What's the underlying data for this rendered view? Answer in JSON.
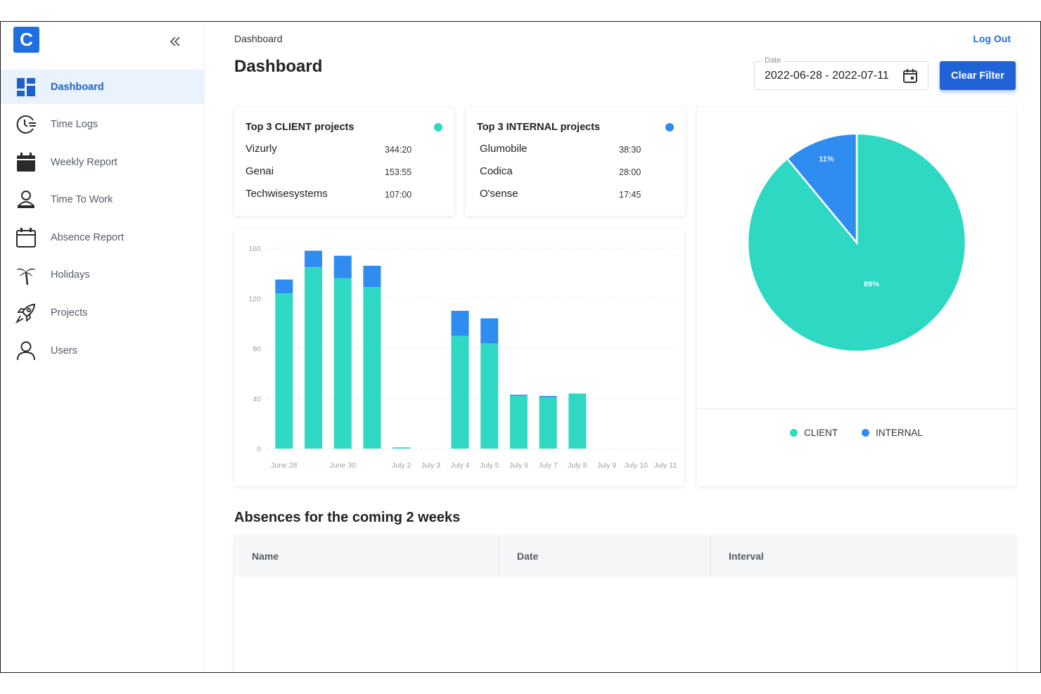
{
  "app": {
    "logo_letter": "C"
  },
  "sidebar": {
    "collapse_icon": "double-chevron-left-icon",
    "items": [
      {
        "label": "Dashboard",
        "icon": "dashboard-icon",
        "active": true
      },
      {
        "label": "Time Logs",
        "icon": "clock-list-icon"
      },
      {
        "label": "Weekly Report",
        "icon": "calendar-filled-icon"
      },
      {
        "label": "Time To Work",
        "icon": "user-laptop-icon"
      },
      {
        "label": "Absence Report",
        "icon": "calendar-outline-icon"
      },
      {
        "label": "Holidays",
        "icon": "palm-tree-icon"
      },
      {
        "label": "Projects",
        "icon": "rocket-icon"
      },
      {
        "label": "Users",
        "icon": "user-icon"
      }
    ]
  },
  "header": {
    "breadcrumb": "Dashboard",
    "title": "Dashboard",
    "logout_label": "Log Out"
  },
  "filter": {
    "date_label": "Date",
    "date_value": "2022-06-28 - 2022-07-11",
    "clear_label": "Clear Filter"
  },
  "client_card": {
    "title": "Top 3 CLIENT projects",
    "dot_color": "#2ed8c3",
    "rows": [
      {
        "name": "Vizurly",
        "time": "344:20"
      },
      {
        "name": "Genai",
        "time": "153:55"
      },
      {
        "name": "Techwisesystems",
        "time": "107:00"
      }
    ]
  },
  "internal_card": {
    "title": "Top 3 INTERNAL projects",
    "dot_color": "#2f8cf0",
    "rows": [
      {
        "name": "Glumobile",
        "time": "38:30"
      },
      {
        "name": "Codica",
        "time": "28:00"
      },
      {
        "name": "O'sense",
        "time": "17:45"
      }
    ]
  },
  "colors": {
    "client": "#2ed8c3",
    "internal": "#2f8cf0",
    "accent": "#1f63d6"
  },
  "chart_data": [
    {
      "type": "bar",
      "stacked": true,
      "categories": [
        "June 28",
        "June 29",
        "June 30",
        "July 1",
        "July 2",
        "July 3",
        "July 4",
        "July 5",
        "July 6",
        "July 7",
        "July 8",
        "July 9",
        "July 10",
        "July 11"
      ],
      "x_tick_labels": [
        "June 28",
        "",
        "June 30",
        "",
        "July 2",
        "July 3",
        "July 4",
        "July 5",
        "July 6",
        "July 7",
        "July 8",
        "July 9",
        "July 10",
        "July 11"
      ],
      "series": [
        {
          "name": "CLIENT",
          "values": [
            124,
            145,
            136,
            129,
            1,
            0,
            90,
            84,
            42,
            41,
            44,
            0,
            0,
            0
          ]
        },
        {
          "name": "INTERNAL",
          "values": [
            11,
            13,
            18,
            17,
            0,
            0,
            20,
            20,
            1,
            1,
            0,
            0,
            0,
            0
          ]
        }
      ],
      "ylim": [
        0,
        160
      ],
      "yticks": [
        0,
        40,
        80,
        120,
        160
      ],
      "grid": true
    },
    {
      "type": "pie",
      "labels": [
        "CLIENT",
        "INTERNAL"
      ],
      "values": [
        89,
        11
      ],
      "value_labels": [
        "89%",
        "11%"
      ],
      "legend": "bottom"
    }
  ],
  "absences": {
    "title": "Absences for the coming 2 weeks",
    "columns": [
      "Name",
      "Date",
      "Interval"
    ]
  }
}
